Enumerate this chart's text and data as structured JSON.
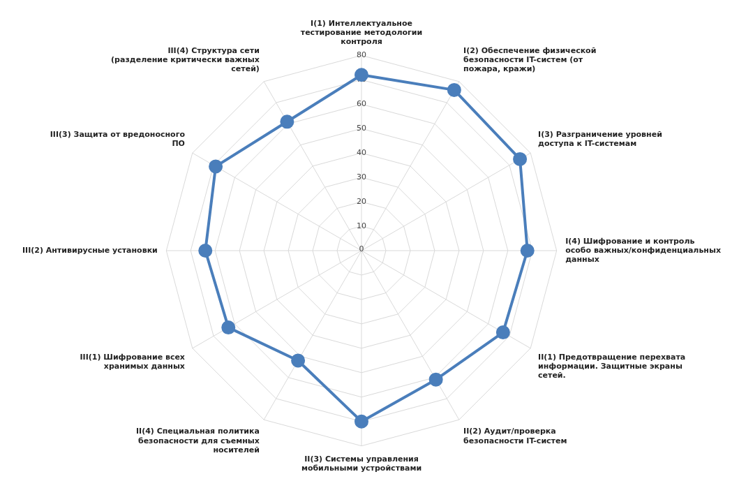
{
  "chart_data": {
    "type": "radar",
    "categories": [
      "I(1) Интеллектуальное тестирование методологии контроля",
      "I(2) Обеспечение физической безопасности IT-систем (от пожара, кражи)",
      "I(3) Разграничение уровней доступа к IT-системам",
      "I(4) Шифрование и контроль особо важных/конфиденциальных данных",
      "II(1) Предотвращение перехвата информации. Защитные экраны сетей.",
      "II(2) Аудит/проверка безопасности IT-систем",
      "II(3) Системы управления мобильными устройствами",
      "II(4) Специальная политика безопасности для съемных носителей",
      "III(1) Шифрование всех хранимых данных",
      "III(2) Антивирусные установки",
      "III(3) Защита от вредоносного ПО",
      "III(4) Структура сети (разделение критически важных сетей)"
    ],
    "series": [
      {
        "color": "#4a7ebb",
        "values": [
          72,
          76,
          75,
          68,
          67,
          61,
          70,
          52,
          63,
          64,
          69,
          61
        ]
      }
    ],
    "ylim": [
      0,
      80
    ],
    "yticks": [
      0,
      10,
      20,
      30,
      40,
      50,
      60,
      70,
      80
    ],
    "grid": true,
    "legend": false,
    "marker": "circle",
    "line_style": "solid"
  }
}
